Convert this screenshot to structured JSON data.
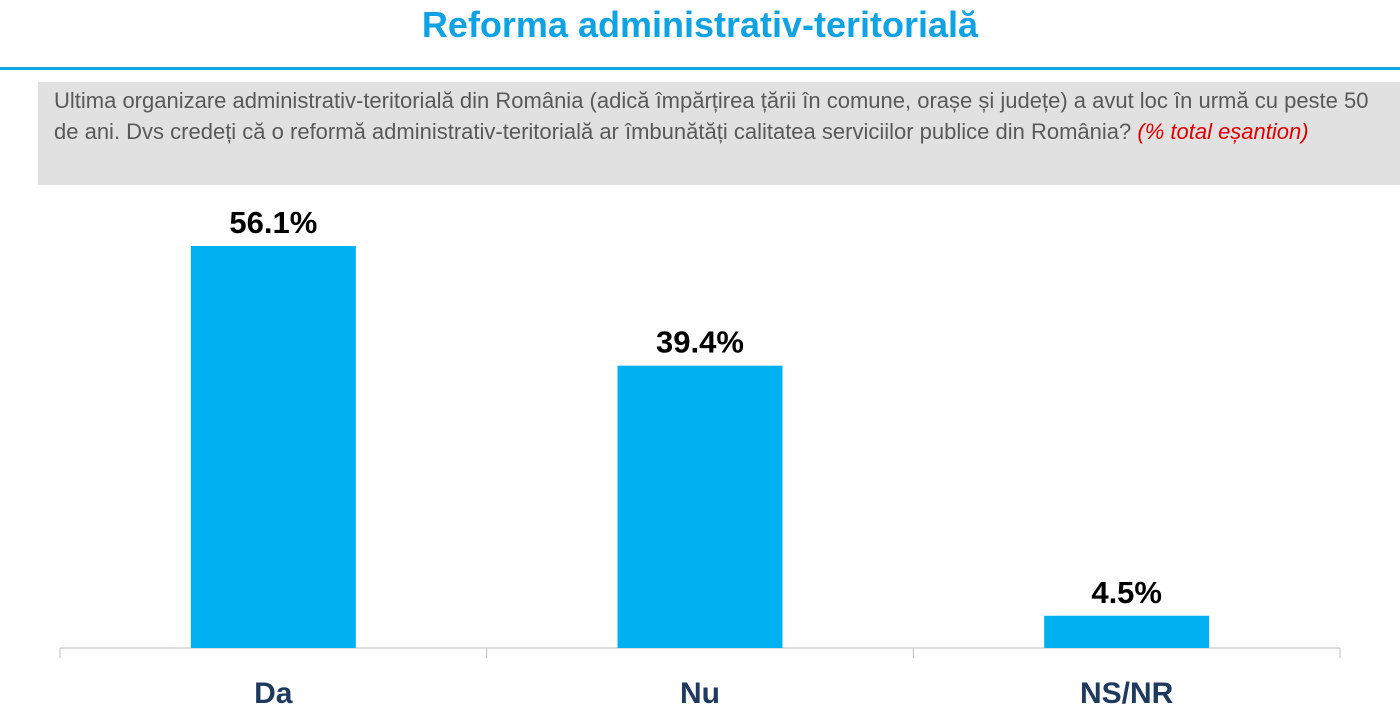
{
  "chart_data": {
    "type": "bar",
    "title": "Reforma administrativ-teritorială",
    "question": "Ultima organizare administrativ-teritorială din România (adică împărțirea țării în comune, orașe și județe) a avut loc în urmă cu peste 50 de ani. Dvs credeți că o reformă administrativ-teritorială ar îmbunătăți calitatea serviciilor publice din România?",
    "note": "(% total eșantion)",
    "categories": [
      "Da",
      "Nu",
      "NS/NR"
    ],
    "values": [
      56.1,
      39.4,
      4.5
    ],
    "value_labels": [
      "56.1%",
      "39.4%",
      "4.5%"
    ],
    "color": "#00b0f0"
  }
}
